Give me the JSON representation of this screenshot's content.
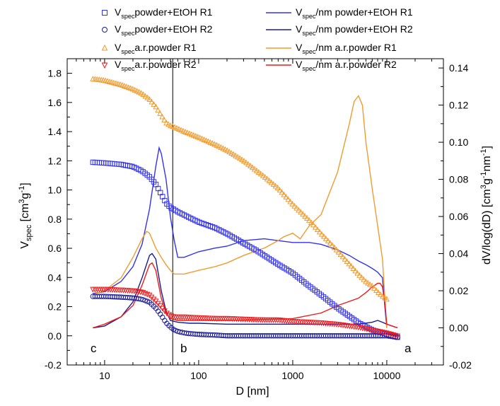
{
  "chart_data": {
    "type": "scatter",
    "title": "",
    "xlabel": "D  [nm]",
    "ylabel_left": {
      "base": "V",
      "sub": "spec",
      "rest": " [cm",
      "sup": "3",
      "rest2": "g",
      "sup2": "-1",
      "end": "]"
    },
    "ylabel_right": {
      "pre": "dV/log(dD) [cm",
      "sup": "3",
      "mid": "g",
      "sup2": "-1",
      "mid2": "nm",
      "sup3": "-1",
      "end": "]"
    },
    "xscale": "log",
    "xlim": [
      4,
      40000
    ],
    "ylim_left": [
      -0.2,
      1.9
    ],
    "ylim_right": [
      -0.02,
      0.145
    ],
    "x_ticks": [
      10,
      100,
      1000,
      10000
    ],
    "x_tick_labels": [
      "10",
      "100",
      "1000",
      "10000"
    ],
    "y_ticks_left": [
      -0.2,
      0.0,
      0.2,
      0.4,
      0.6,
      0.8,
      1.0,
      1.2,
      1.4,
      1.6,
      1.8
    ],
    "y_tick_labels_left": [
      "-0.2",
      "0.0",
      "0.2",
      "0.4",
      "0.6",
      "0.8",
      "1.0",
      "1.2",
      "1.4",
      "1.6",
      "1.8"
    ],
    "y_ticks_right": [
      -0.02,
      0.0,
      0.02,
      0.04,
      0.06,
      0.08,
      0.1,
      0.12,
      0.14
    ],
    "y_tick_labels_right": [
      "-0.02",
      "0.00",
      "0.02",
      "0.04",
      "0.06",
      "0.08",
      "0.10",
      "0.12",
      "0.14"
    ],
    "vline_x": 53,
    "annotations": [
      "c",
      "b",
      "a"
    ],
    "legend_placement": "top",
    "grid": false,
    "series": [
      {
        "name": "powder+EtOH R1",
        "label_parts": [
          "V",
          "spec",
          "powder+EtOH R1"
        ],
        "kind": "scatter",
        "marker": "square",
        "axis": "left",
        "color": "#3333ee",
        "x": [
          7.5,
          10,
          15,
          20,
          25,
          30,
          35,
          40,
          45,
          50,
          55,
          60,
          80,
          100,
          150,
          200,
          300,
          400,
          500,
          700,
          1000,
          1500,
          2000,
          3000,
          5000,
          7000,
          10000,
          13000
        ],
        "y": [
          1.19,
          1.185,
          1.175,
          1.16,
          1.13,
          1.09,
          1.04,
          0.97,
          0.91,
          0.88,
          0.865,
          0.85,
          0.81,
          0.78,
          0.74,
          0.7,
          0.635,
          0.59,
          0.55,
          0.49,
          0.43,
          0.34,
          0.28,
          0.19,
          0.09,
          0.04,
          0.01,
          -0.01
        ]
      },
      {
        "name": "powder+EtOH R2",
        "label_parts": [
          "V",
          "spec",
          "powder+EtOH R2"
        ],
        "kind": "scatter",
        "marker": "circle",
        "axis": "left",
        "color": "#1a1a99",
        "x": [
          7.5,
          10,
          15,
          20,
          25,
          30,
          35,
          40,
          45,
          50,
          55,
          60,
          70,
          80,
          100,
          150,
          200,
          300,
          500,
          700,
          1000,
          2000,
          3000,
          5000,
          7000,
          10000,
          13000
        ],
        "y": [
          0.27,
          0.27,
          0.265,
          0.26,
          0.25,
          0.23,
          0.19,
          0.14,
          0.09,
          0.06,
          0.04,
          0.03,
          0.02,
          0.015,
          0.01,
          0.005,
          0.0,
          0.0,
          0.0,
          0.0,
          0.0,
          0.0,
          0.0,
          0.0,
          0.0,
          0.0,
          -0.01
        ]
      },
      {
        "name": "a.r.powder R1",
        "label_parts": [
          "V",
          "spec",
          "a.r.powder R1"
        ],
        "kind": "scatter",
        "marker": "triangle-up",
        "axis": "left",
        "color": "#f29b2f",
        "x": [
          7.5,
          10,
          15,
          20,
          25,
          30,
          35,
          40,
          45,
          50,
          55,
          70,
          100,
          150,
          200,
          300,
          500,
          700,
          1000,
          1500,
          2000,
          3000,
          4000,
          5000,
          6000,
          7000,
          8000,
          9000,
          10000
        ],
        "y": [
          1.76,
          1.75,
          1.72,
          1.69,
          1.66,
          1.62,
          1.57,
          1.51,
          1.46,
          1.44,
          1.43,
          1.4,
          1.36,
          1.31,
          1.27,
          1.2,
          1.09,
          1.01,
          0.9,
          0.79,
          0.7,
          0.58,
          0.49,
          0.42,
          0.37,
          0.34,
          0.3,
          0.27,
          0.25
        ]
      },
      {
        "name": "a.r.powder R2",
        "label_parts": [
          "V",
          "spec",
          "a.r.powder R2"
        ],
        "kind": "scatter",
        "marker": "triangle-down",
        "axis": "left",
        "color": "#ee1c1c",
        "x": [
          7.5,
          10,
          15,
          20,
          25,
          30,
          35,
          40,
          45,
          50,
          55,
          70,
          100,
          150,
          200,
          300,
          500,
          700,
          1000,
          2000,
          3000,
          5000,
          7000,
          10000,
          13000
        ],
        "y": [
          0.32,
          0.32,
          0.315,
          0.31,
          0.3,
          0.28,
          0.24,
          0.2,
          0.16,
          0.14,
          0.13,
          0.13,
          0.125,
          0.12,
          0.12,
          0.115,
          0.11,
          0.11,
          0.1,
          0.09,
          0.08,
          0.06,
          0.04,
          0.02,
          0.0
        ]
      },
      {
        "name": "/nm powder+EtOH R1",
        "label_parts": [
          "V",
          "spec",
          "/nm powder+EtOH R1"
        ],
        "kind": "line",
        "axis": "right",
        "color": "#3333ee",
        "x": [
          7.5,
          10,
          15,
          20,
          25,
          30,
          35,
          38,
          40,
          45,
          50,
          55,
          60,
          70,
          100,
          150,
          200,
          300,
          500,
          700,
          1000,
          1500,
          2000,
          3000,
          4000,
          5000,
          6000,
          7000,
          8000,
          9000,
          9500,
          10000
        ],
        "y": [
          0.0185,
          0.0195,
          0.025,
          0.033,
          0.045,
          0.064,
          0.087,
          0.097,
          0.094,
          0.08,
          0.06,
          0.047,
          0.038,
          0.038,
          0.041,
          0.043,
          0.044,
          0.047,
          0.048,
          0.047,
          0.046,
          0.046,
          0.045,
          0.042,
          0.039,
          0.036,
          0.034,
          0.032,
          0.03,
          0.027,
          0.012,
          0.0
        ]
      },
      {
        "name": "/nm powder+EtOH R2",
        "label_parts": [
          "V",
          "spec",
          "/nm powder+EtOH R2"
        ],
        "kind": "line",
        "axis": "right",
        "color": "#1a1a99",
        "x": [
          7.5,
          10,
          15,
          20,
          25,
          30,
          32,
          35,
          40,
          45,
          50,
          60,
          80,
          100,
          200,
          500,
          1000,
          2000,
          5000,
          7000,
          8000,
          9000,
          10000,
          13000
        ],
        "y": [
          0.0,
          0.001,
          0.006,
          0.014,
          0.027,
          0.039,
          0.04,
          0.037,
          0.02,
          0.009,
          0.004,
          0.003,
          0.0025,
          0.0025,
          0.002,
          0.002,
          0.002,
          0.002,
          0.002,
          0.003,
          0.004,
          0.003,
          0.002,
          0.0
        ]
      },
      {
        "name": "/nm a.r.powder R1",
        "label_parts": [
          "V",
          "spec",
          "/nm a.r.powder R1"
        ],
        "kind": "line",
        "axis": "right",
        "color": "#f29b2f",
        "x": [
          7.5,
          10,
          15,
          20,
          25,
          28,
          30,
          35,
          40,
          45,
          50,
          55,
          70,
          100,
          150,
          200,
          300,
          500,
          700,
          800,
          1000,
          1200,
          1500,
          2000,
          3000,
          4000,
          4500,
          5000,
          5500,
          6000,
          7000,
          8000,
          9000,
          10000
        ],
        "y": [
          0.018,
          0.02,
          0.027,
          0.038,
          0.048,
          0.052,
          0.051,
          0.043,
          0.038,
          0.034,
          0.031,
          0.029,
          0.029,
          0.031,
          0.033,
          0.035,
          0.039,
          0.043,
          0.047,
          0.049,
          0.051,
          0.048,
          0.055,
          0.061,
          0.084,
          0.11,
          0.122,
          0.125,
          0.12,
          0.1,
          0.075,
          0.055,
          0.037,
          0.0
        ]
      },
      {
        "name": "/nm a.r.powder R2",
        "label_parts": [
          "V",
          "spec",
          "/nm a.r.powder R2"
        ],
        "kind": "line",
        "axis": "right",
        "color": "#ee1c1c",
        "x": [
          7.5,
          10,
          15,
          20,
          25,
          30,
          32,
          35,
          40,
          45,
          50,
          60,
          80,
          100,
          200,
          500,
          1000,
          2000,
          3000,
          5000,
          6000,
          7000,
          8000,
          8500,
          9000,
          9500,
          10000,
          13000
        ],
        "y": [
          0.0,
          0.002,
          0.006,
          0.012,
          0.023,
          0.034,
          0.035,
          0.031,
          0.016,
          0.008,
          0.005,
          0.004,
          0.004,
          0.004,
          0.004,
          0.0045,
          0.005,
          0.008,
          0.012,
          0.016,
          0.019,
          0.022,
          0.024,
          0.024,
          0.022,
          0.014,
          0.002,
          0.0
        ]
      }
    ]
  }
}
